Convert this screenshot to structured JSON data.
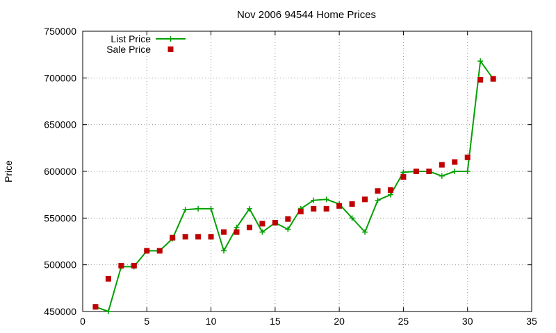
{
  "chart_data": {
    "type": "line",
    "title": "Nov 2006 94544 Home Prices",
    "xlabel": "",
    "ylabel": "Price",
    "xlim": [
      0,
      35
    ],
    "ylim": [
      450000,
      750000
    ],
    "xticks": [
      0,
      5,
      10,
      15,
      20,
      25,
      30,
      35
    ],
    "yticks": [
      450000,
      500000,
      550000,
      600000,
      650000,
      700000,
      750000
    ],
    "grid": true,
    "legend_position": "top-left",
    "series": [
      {
        "name": "List Price",
        "style": "line+cross",
        "color": "#00a000",
        "x": [
          1,
          2,
          3,
          4,
          5,
          6,
          7,
          8,
          9,
          10,
          11,
          12,
          13,
          14,
          15,
          16,
          17,
          18,
          19,
          20,
          21,
          22,
          23,
          24,
          25,
          26,
          27,
          28,
          29,
          30,
          31,
          32
        ],
        "values": [
          455000,
          450000,
          498000,
          498000,
          515000,
          515000,
          528000,
          559000,
          560000,
          560000,
          515000,
          540000,
          560000,
          535000,
          545000,
          538000,
          560000,
          569000,
          570000,
          565000,
          550000,
          535000,
          569000,
          575000,
          599000,
          600000,
          600000,
          595000,
          600000,
          600000,
          718000,
          699000
        ]
      },
      {
        "name": "Sale Price",
        "style": "points",
        "color": "#c00000",
        "x": [
          1,
          2,
          3,
          4,
          5,
          6,
          7,
          8,
          9,
          10,
          11,
          12,
          13,
          14,
          15,
          16,
          17,
          18,
          19,
          20,
          21,
          22,
          23,
          24,
          25,
          26,
          27,
          28,
          29,
          30,
          31,
          32
        ],
        "values": [
          455000,
          485000,
          499000,
          499000,
          515000,
          515000,
          529000,
          530000,
          530000,
          530000,
          535000,
          535000,
          540000,
          544000,
          545000,
          549000,
          557000,
          560000,
          560000,
          563000,
          565000,
          570000,
          579000,
          580000,
          594000,
          600000,
          600000,
          607000,
          610000,
          615000,
          698000,
          699000
        ]
      }
    ]
  }
}
